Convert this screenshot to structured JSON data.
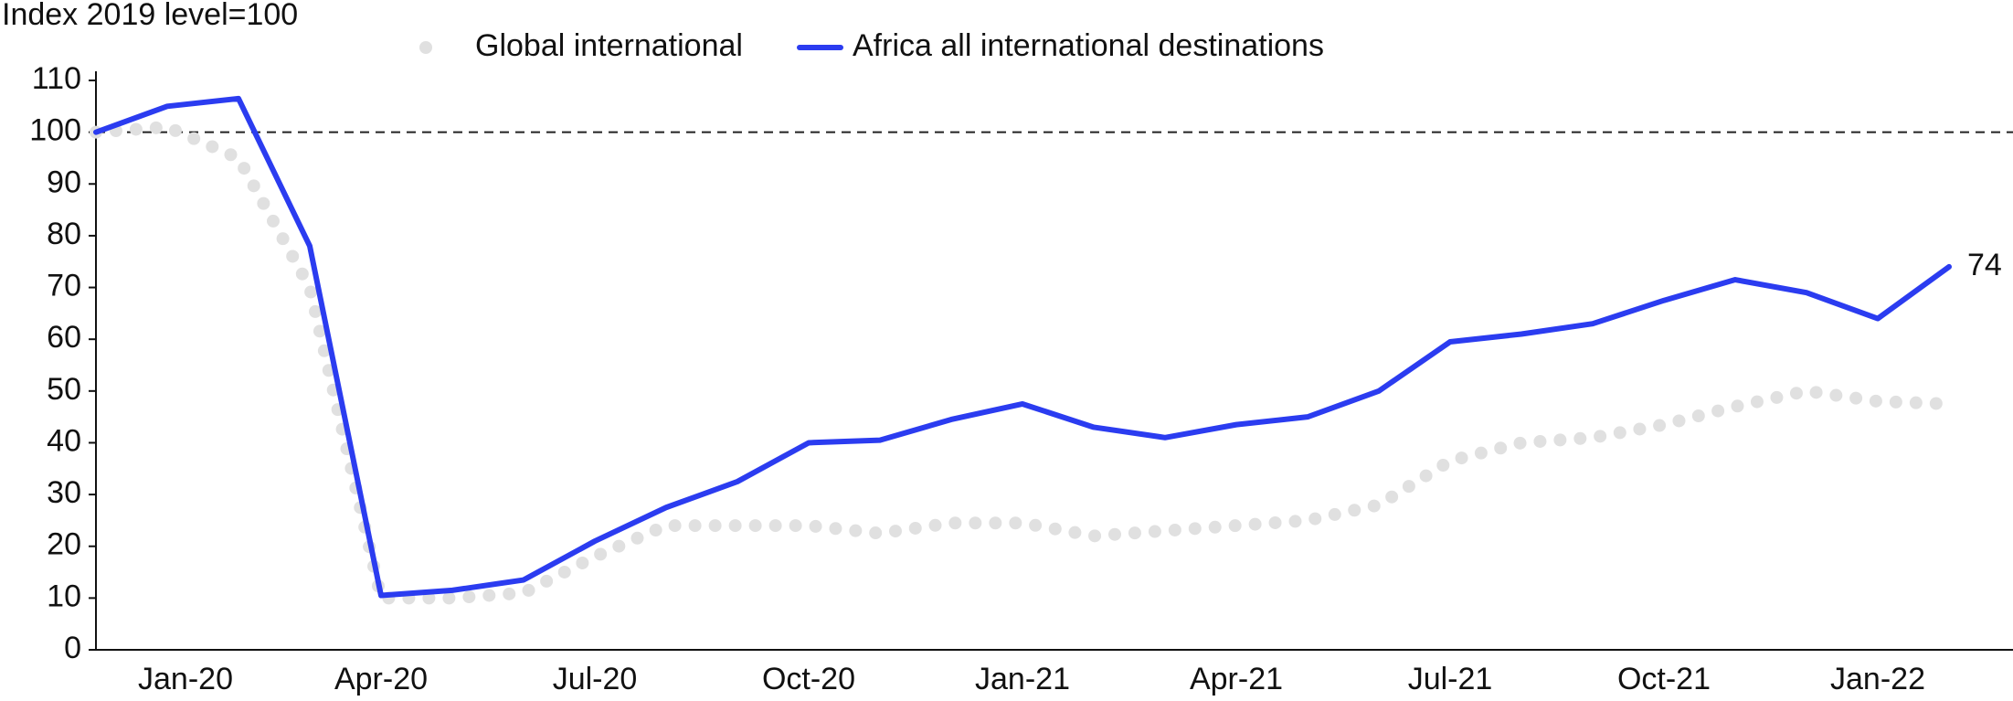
{
  "chart_data": {
    "type": "line",
    "y_axis_label": "Index 2019 level=100",
    "categories": [
      null,
      "Jan-20",
      null,
      null,
      "Apr-20",
      null,
      null,
      "Jul-20",
      null,
      null,
      "Oct-20",
      null,
      null,
      "Jan-21",
      null,
      null,
      "Apr-21",
      null,
      null,
      "Jul-21",
      null,
      null,
      "Oct-21",
      null,
      null,
      "Jan-22",
      null
    ],
    "series": [
      {
        "name": "Global international",
        "color": "#e0e0e0",
        "style": "dotted",
        "values": [
          100,
          101,
          95,
          70,
          10,
          10,
          11,
          18,
          24,
          24,
          24,
          22.5,
          24.5,
          24.5,
          22,
          23,
          24,
          25,
          28,
          36.5,
          40,
          41,
          43.5,
          47,
          50,
          48,
          47.5
        ]
      },
      {
        "name": "Africa all international destinations",
        "color": "#2b3cf0",
        "style": "solid",
        "values": [
          100,
          105,
          106.5,
          78,
          10.5,
          11.5,
          13.5,
          21,
          27.5,
          32.5,
          40,
          40.5,
          44.5,
          47.5,
          43,
          41,
          43.5,
          45,
          50,
          59.5,
          61,
          63,
          67.5,
          71.5,
          69,
          64,
          74
        ]
      }
    ],
    "reference_line": 100,
    "ylim": [
      0,
      110
    ],
    "yticks": [
      0,
      10,
      20,
      30,
      40,
      50,
      60,
      70,
      80,
      90,
      100,
      110
    ]
  }
}
